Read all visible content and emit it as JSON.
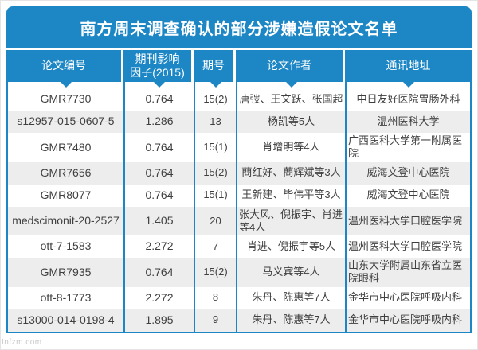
{
  "page": {
    "title": "南方周末调查确认的部分涉嫌造假论文名单",
    "watermark": "Infzm.com"
  },
  "colors": {
    "accent_blue": "#1d87c6",
    "row_alt_gray": "#ededed",
    "text_dark": "#3f3f3f",
    "header_text": "#ffffff"
  },
  "table": {
    "headers": [
      "论文编号",
      "期刊影响\n因子(2015)",
      "期号",
      "论文作者",
      "通讯地址"
    ],
    "rows": [
      {
        "id": "GMR7730",
        "impact": "0.764",
        "issue": "15(2)",
        "authors": "唐弢、王文跃、张国超",
        "address": "中日友好医院胃肠外科"
      },
      {
        "id": "s12957-015-0607-5",
        "impact": "1.286",
        "issue": "13",
        "authors": "杨凯等5人",
        "address": "温州医科大学"
      },
      {
        "id": "GMR7480",
        "impact": "0.764",
        "issue": "15(1)",
        "authors": "肖增明等4人",
        "address": "广西医科大学第一附属医院"
      },
      {
        "id": "GMR7656",
        "impact": "0.764",
        "issue": "15(2)",
        "authors": "蔄红好、蔄辉斌等3人",
        "address": "威海文登中心医院"
      },
      {
        "id": "GMR8077",
        "impact": "0.764",
        "issue": "15(1)",
        "authors": "王新建、毕伟平等3人",
        "address": "威海文登中心医院"
      },
      {
        "id": "medscimonit-20-2527",
        "impact": "1.405",
        "issue": "20",
        "authors": "张大风、倪振宇、肖进等4人",
        "address": "温州医科大学口腔医学院"
      },
      {
        "id": "ott-7-1583",
        "impact": "2.272",
        "issue": "7",
        "authors": "肖进、倪振宇等5人",
        "address": "温州医科大学口腔医学院"
      },
      {
        "id": "GMR7935",
        "impact": "0.764",
        "issue": "15(2)",
        "authors": "马义宾等4人",
        "address": "山东大学附属山东省立医院眼科"
      },
      {
        "id": "ott-8-1773",
        "impact": "2.272",
        "issue": "8",
        "authors": "朱丹、陈惠等7人",
        "address": "金华市中心医院呼吸内科"
      },
      {
        "id": "s13000-014-0198-4",
        "impact": "1.895",
        "issue": "9",
        "authors": "朱丹、陈惠等7人",
        "address": "金华市中心医院呼吸内科"
      }
    ]
  }
}
